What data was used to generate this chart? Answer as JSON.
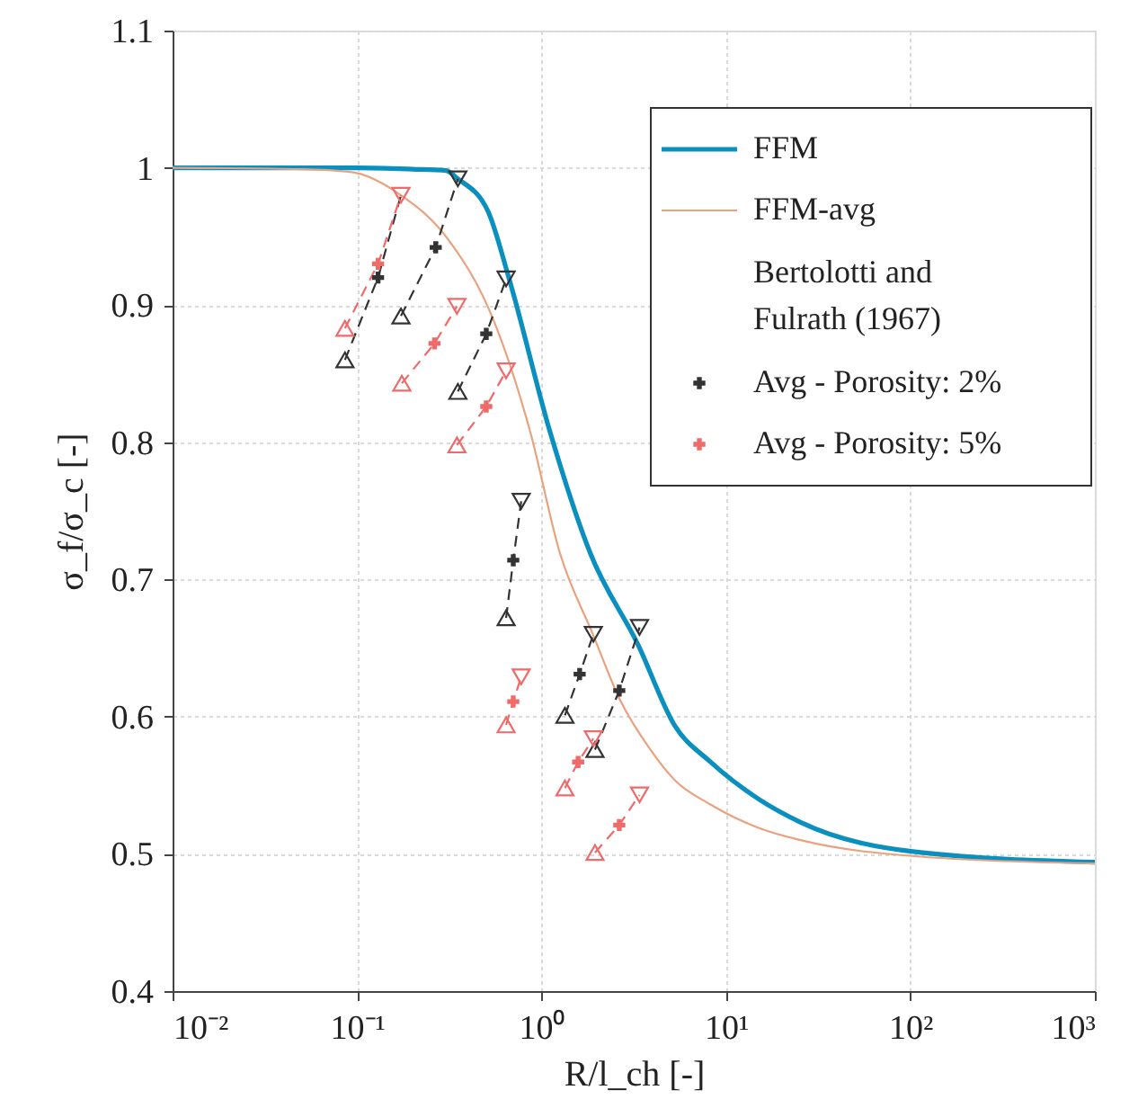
{
  "chart_data": {
    "type": "line",
    "xlabel": "R/l_ch [-]",
    "ylabel": "σ_f/σ_c [-]",
    "legend_title": "Bertolotti and Fulrath (1967)",
    "xlim": [
      0.01,
      1000
    ],
    "ylim": [
      0.4,
      1.1
    ],
    "log": "x",
    "grid": true,
    "legend": "top right",
    "xticks": [
      {
        "value": 0.01,
        "label": "10⁻²"
      },
      {
        "value": 0.1,
        "label": "10⁻¹"
      },
      {
        "value": 1,
        "label": "10⁰"
      },
      {
        "value": 10,
        "label": "10¹"
      },
      {
        "value": 100,
        "label": "10²"
      },
      {
        "value": 1000,
        "label": "10³"
      }
    ],
    "yticks": [
      0.4,
      0.5,
      0.6,
      0.7,
      0.8,
      0.9,
      1,
      1.1
    ],
    "series": [
      {
        "name": "FFM",
        "color": "#0a8fbf",
        "line_style": "solid",
        "x": [
          0.01,
          0.1,
          0.2,
          0.303,
          0.352,
          0.514,
          0.668,
          1.11,
          1.84,
          3.35,
          5.25,
          8.24,
          15,
          25.4,
          114,
          1000
        ],
        "values": [
          1.0,
          1.0,
          0.999,
          0.998,
          0.992,
          0.968,
          0.919,
          0.808,
          0.719,
          0.652,
          0.594,
          0.567,
          0.54,
          0.523,
          0.501,
          0.494
        ]
      },
      {
        "name": "FFM-avg",
        "color": "#eaa27e",
        "line_style": "solid",
        "x": [
          0.01,
          0.05,
          0.092,
          0.173,
          0.303,
          0.553,
          0.867,
          1.26,
          1.9,
          2.67,
          3.89,
          5.25,
          8.24,
          15,
          25.4,
          114,
          1000
        ],
        "values": [
          1.0,
          0.999,
          0.997,
          0.98,
          0.95,
          0.888,
          0.808,
          0.719,
          0.66,
          0.612,
          0.576,
          0.554,
          0.536,
          0.519,
          0.51,
          0.498,
          0.493
        ]
      },
      {
        "color": "#333333",
        "line_style": "dashed",
        "x": [
          0.086,
          0.13,
          0.173,
          null,
          0.173,
          0.267,
          0.352,
          null,
          0.352,
          0.502,
          0.643,
          null,
          0.643,
          0.703,
          0.776,
          null,
          1.34,
          1.61,
          1.91,
          null,
          1.95,
          2.64,
          3.4
        ],
        "values": [
          0.86,
          0.92,
          0.98,
          null,
          0.892,
          0.942,
          0.992,
          null,
          0.837,
          0.879,
          0.919,
          null,
          0.672,
          0.714,
          0.757,
          null,
          0.601,
          0.631,
          0.66,
          null,
          0.576,
          0.619,
          0.665
        ]
      },
      {
        "color": "#f06a6a",
        "line_style": "dashed",
        "x": [
          0.086,
          0.13,
          0.173,
          null,
          0.175,
          0.263,
          0.348,
          null,
          0.348,
          0.502,
          0.643,
          null,
          0.643,
          0.703,
          0.776,
          null,
          1.34,
          1.58,
          1.91,
          null,
          1.95,
          2.64,
          3.4
        ],
        "values": [
          0.883,
          0.93,
          0.98,
          null,
          0.843,
          0.872,
          0.899,
          null,
          0.798,
          0.826,
          0.852,
          null,
          0.594,
          0.611,
          0.629,
          null,
          0.548,
          0.567,
          0.584,
          null,
          0.501,
          0.521,
          0.543
        ]
      },
      {
        "type": "scatter",
        "color": "#333333",
        "marker": "triangle",
        "x": [
          0.086,
          0.173,
          0.352,
          0.643,
          1.34,
          1.95
        ],
        "values": [
          0.86,
          0.892,
          0.837,
          0.672,
          0.601,
          0.576
        ]
      },
      {
        "type": "scatter",
        "color": "#333333",
        "marker": "triangle_down",
        "x": [
          0.352,
          0.643,
          0.776,
          1.91,
          3.4
        ],
        "values": [
          0.992,
          0.919,
          0.757,
          0.66,
          0.665
        ]
      },
      {
        "type": "scatter",
        "color": "#f06a6a",
        "marker": "triangle",
        "x": [
          0.086,
          0.175,
          0.348,
          0.643,
          1.34,
          1.95
        ],
        "values": [
          0.883,
          0.843,
          0.798,
          0.594,
          0.548,
          0.501
        ]
      },
      {
        "type": "scatter",
        "color": "#f06a6a",
        "marker": "triangle_down",
        "x": [
          0.173,
          0.348,
          0.643,
          0.776,
          1.91,
          3.4
        ],
        "values": [
          0.98,
          0.899,
          0.852,
          0.629,
          0.584,
          0.543
        ]
      },
      {
        "name": "Avg - Porosity: 2%",
        "type": "scatter",
        "color": "#333333",
        "marker": "cross",
        "x": [
          0.13,
          0.267,
          0.502,
          0.703,
          1.61,
          2.64
        ],
        "values": [
          0.92,
          0.942,
          0.879,
          0.714,
          0.631,
          0.619
        ]
      },
      {
        "name": "Avg - Porosity: 5%",
        "type": "scatter",
        "color": "#f06a6a",
        "marker": "cross",
        "x": [
          0.13,
          0.263,
          0.502,
          0.703,
          1.58,
          2.64
        ],
        "values": [
          0.93,
          0.872,
          0.826,
          0.611,
          0.567,
          0.521
        ]
      }
    ]
  }
}
